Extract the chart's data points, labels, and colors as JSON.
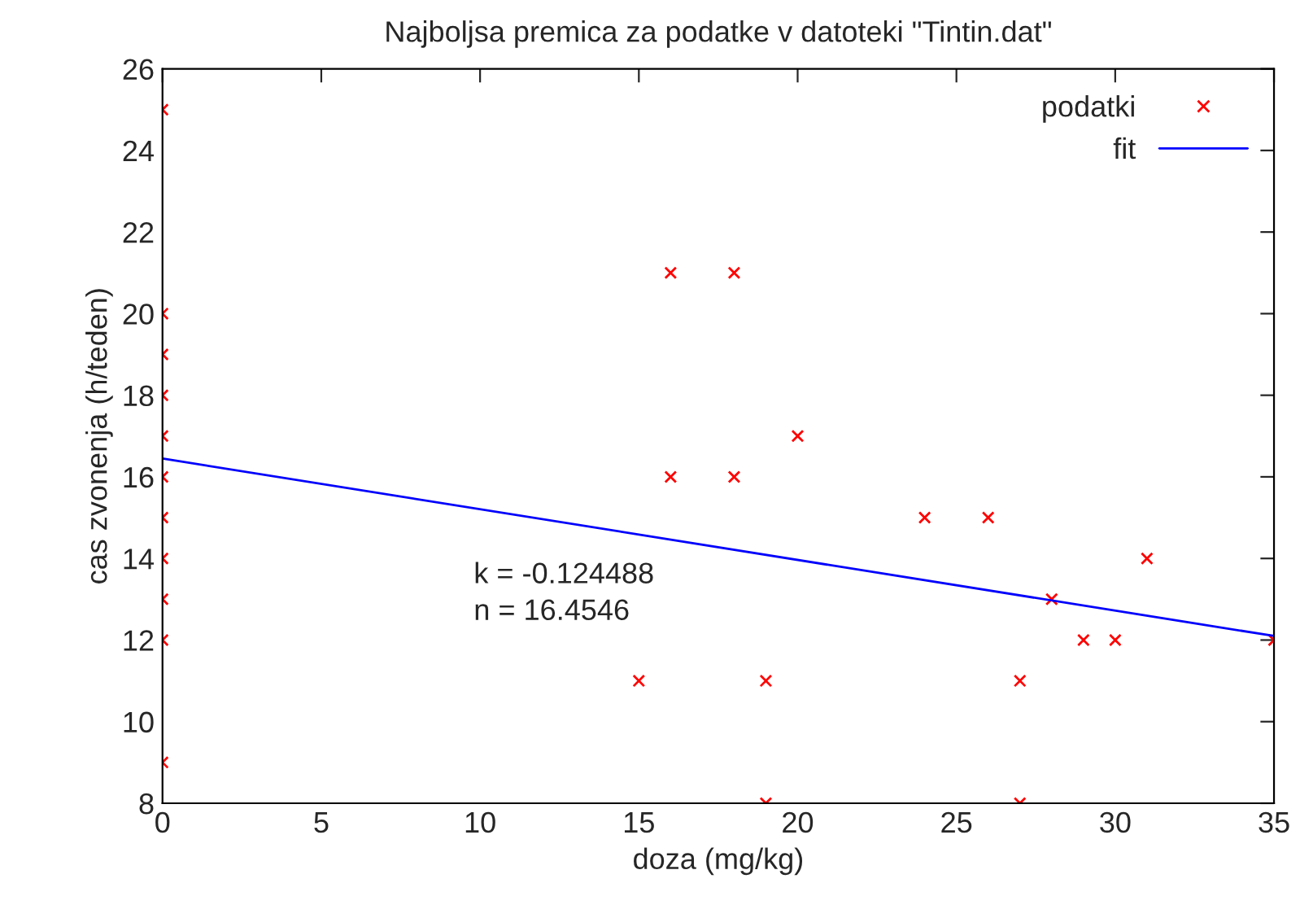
{
  "chart_data": {
    "type": "scatter",
    "title": "Najboljsa premica za podatke v datoteki \"Tintin.dat\"",
    "xlabel": "doza (mg/kg)",
    "ylabel": "cas zvonenja (h/teden)",
    "xlim": [
      0,
      35
    ],
    "xticks": [
      0,
      5,
      10,
      15,
      20,
      25,
      30,
      35
    ],
    "ylim": [
      8,
      26
    ],
    "yticks": [
      8,
      10,
      12,
      14,
      16,
      18,
      20,
      22,
      24,
      26
    ],
    "grid": false,
    "legend": "top right",
    "annotations": [
      "k = -0.124488",
      "n = 16.4546"
    ],
    "series": [
      {
        "name": "podatki",
        "marker": "cross",
        "color": "#ff0000",
        "x": [
          0,
          0,
          0,
          0,
          0,
          0,
          0,
          0,
          0,
          0,
          0,
          15,
          16,
          16,
          18,
          18,
          19,
          19,
          20,
          24,
          26,
          27,
          27,
          28,
          29,
          30,
          31,
          35
        ],
        "values": [
          25,
          20,
          19,
          18,
          17,
          16,
          15,
          14,
          13,
          12,
          9,
          11,
          21,
          16,
          21,
          16,
          11,
          8,
          17,
          15,
          15,
          11,
          8,
          13,
          12,
          12,
          14,
          12
        ]
      },
      {
        "name": "fit",
        "type": "line",
        "line_style": "solid",
        "color": "#0000ff",
        "x": [
          0,
          35
        ],
        "values": [
          16.45,
          12.1
        ]
      }
    ]
  }
}
